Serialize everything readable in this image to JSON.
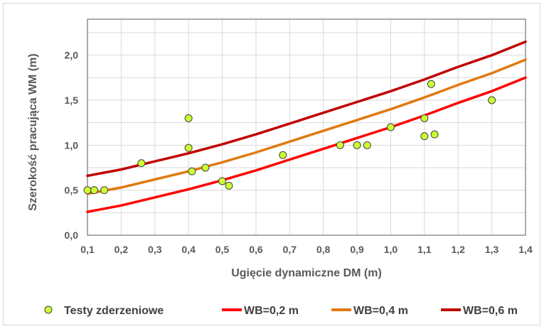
{
  "chart_data": {
    "type": "line",
    "xlabel": "Ugięcie dynamiczne DM (m)",
    "ylabel": "Szerokość pracująca WM  (m)",
    "xlim": [
      0.1,
      1.4
    ],
    "ylim": [
      0.0,
      2.4
    ],
    "x_ticks": [
      "0,1",
      "0,2",
      "0,3",
      "0,4",
      "0,5",
      "0,6",
      "0,7",
      "0,8",
      "0,9",
      "1,0",
      "1,1",
      "1,2",
      "1,3",
      "1,4"
    ],
    "y_ticks": [
      "0,0",
      "0,5",
      "1,0",
      "1,5",
      "2,0"
    ],
    "x_tick_values": [
      0.1,
      0.2,
      0.3,
      0.4,
      0.5,
      0.6,
      0.7,
      0.8,
      0.9,
      1.0,
      1.1,
      1.2,
      1.3,
      1.4
    ],
    "y_tick_values": [
      0.0,
      0.5,
      1.0,
      1.5,
      2.0
    ],
    "grid": true,
    "legend_position": "bottom",
    "series": [
      {
        "name": "Testy zderzeniowe",
        "kind": "scatter",
        "color": "#ccff33",
        "points": [
          [
            0.1,
            0.5
          ],
          [
            0.12,
            0.5
          ],
          [
            0.15,
            0.5
          ],
          [
            0.26,
            0.8
          ],
          [
            0.4,
            1.3
          ],
          [
            0.4,
            0.97
          ],
          [
            0.41,
            0.71
          ],
          [
            0.45,
            0.75
          ],
          [
            0.5,
            0.6
          ],
          [
            0.52,
            0.55
          ],
          [
            0.68,
            0.89
          ],
          [
            0.85,
            1.0
          ],
          [
            0.9,
            1.0
          ],
          [
            0.93,
            1.0
          ],
          [
            1.0,
            1.2
          ],
          [
            1.1,
            1.3
          ],
          [
            1.1,
            1.1
          ],
          [
            1.12,
            1.68
          ],
          [
            1.13,
            1.12
          ],
          [
            1.3,
            1.5
          ]
        ]
      },
      {
        "name": "WB=0,2 m",
        "kind": "line",
        "color": "#ff0000",
        "points": [
          [
            0.1,
            0.26
          ],
          [
            0.2,
            0.33
          ],
          [
            0.3,
            0.42
          ],
          [
            0.4,
            0.51
          ],
          [
            0.5,
            0.61
          ],
          [
            0.6,
            0.72
          ],
          [
            0.7,
            0.84
          ],
          [
            0.8,
            0.96
          ],
          [
            0.9,
            1.08
          ],
          [
            1.0,
            1.2
          ],
          [
            1.1,
            1.33
          ],
          [
            1.2,
            1.47
          ],
          [
            1.3,
            1.6
          ],
          [
            1.4,
            1.75
          ]
        ]
      },
      {
        "name": "WB=0,4 m",
        "kind": "line",
        "color": "#e07a10",
        "points": [
          [
            0.1,
            0.46
          ],
          [
            0.2,
            0.53
          ],
          [
            0.3,
            0.62
          ],
          [
            0.4,
            0.71
          ],
          [
            0.5,
            0.81
          ],
          [
            0.6,
            0.92
          ],
          [
            0.7,
            1.04
          ],
          [
            0.8,
            1.16
          ],
          [
            0.9,
            1.28
          ],
          [
            1.0,
            1.4
          ],
          [
            1.1,
            1.53
          ],
          [
            1.2,
            1.67
          ],
          [
            1.3,
            1.8
          ],
          [
            1.4,
            1.95
          ]
        ]
      },
      {
        "name": "WB=0,6 m",
        "kind": "line",
        "color": "#c00000",
        "points": [
          [
            0.1,
            0.66
          ],
          [
            0.2,
            0.73
          ],
          [
            0.3,
            0.82
          ],
          [
            0.4,
            0.91
          ],
          [
            0.5,
            1.01
          ],
          [
            0.6,
            1.12
          ],
          [
            0.7,
            1.24
          ],
          [
            0.8,
            1.36
          ],
          [
            0.9,
            1.48
          ],
          [
            1.0,
            1.6
          ],
          [
            1.1,
            1.73
          ],
          [
            1.2,
            1.87
          ],
          [
            1.3,
            2.0
          ],
          [
            1.4,
            2.15
          ]
        ]
      }
    ]
  }
}
